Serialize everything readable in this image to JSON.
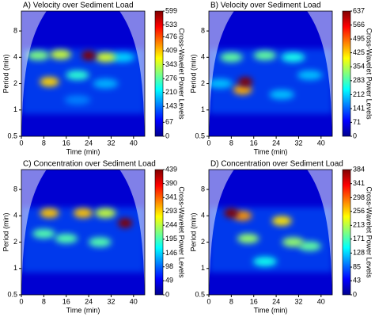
{
  "chart_data": [
    {
      "type": "heatmap",
      "title": "A) Velocity over Sediment Load",
      "xlabel": "Time (min)",
      "ylabel": "Period (min)",
      "colorbar_label": "Cross-Wavelet Power Levels",
      "colormap": "jet",
      "xlim": [
        0,
        44
      ],
      "xticks": [
        0,
        8,
        16,
        24,
        32,
        40
      ],
      "ylim": [
        0.5,
        13.5
      ],
      "yticks": [
        0.5,
        1,
        2,
        4,
        8
      ],
      "yscale": "log",
      "clim": [
        0,
        599
      ],
      "cticks": [
        0,
        67,
        143,
        210,
        276,
        343,
        409,
        476,
        533,
        599
      ],
      "x": [
        20,
        30,
        36,
        20,
        6,
        14,
        30,
        10,
        24
      ],
      "y": [
        1.3,
        2,
        4,
        2.5,
        4.2,
        4.3,
        4,
        2.1,
        4.2
      ],
      "values": [
        150,
        180,
        200,
        250,
        300,
        343,
        350,
        400,
        599
      ]
    },
    {
      "type": "heatmap",
      "title": "B) Velocity over Sediment Load",
      "xlabel": "Time (min)",
      "ylabel": "Period (min)",
      "colorbar_label": "Cross-Wavelet Power Levels",
      "colormap": "jet",
      "xlim": [
        0,
        44
      ],
      "xticks": [
        0,
        8,
        16,
        24,
        32,
        40
      ],
      "ylim": [
        0.5,
        13.5
      ],
      "yticks": [
        0.5,
        1,
        2,
        4,
        8
      ],
      "yscale": "log",
      "clim": [
        0,
        637
      ],
      "cticks": [
        0,
        71,
        141,
        212,
        283,
        354,
        425,
        495,
        566,
        637
      ],
      "x": [
        26,
        36,
        4,
        30,
        8,
        20,
        12,
        13
      ],
      "y": [
        1.5,
        2.5,
        2,
        4,
        4,
        4.2,
        1.7,
        2.1
      ],
      "values": [
        200,
        200,
        200,
        250,
        300,
        300,
        450,
        637
      ]
    },
    {
      "type": "heatmap",
      "title": "C) Concentration over Sediment Load",
      "xlabel": "Time (min)",
      "ylabel": "Period (min)",
      "colorbar_label": "Cross-Wavelet Power Levels",
      "colormap": "jet",
      "xlim": [
        0,
        44
      ],
      "xticks": [
        0,
        8,
        16,
        24,
        32,
        40
      ],
      "ylim": [
        0.5,
        13.5
      ],
      "yticks": [
        0.5,
        1,
        2,
        4,
        8
      ],
      "yscale": "log",
      "clim": [
        0,
        439
      ],
      "cticks": [
        0,
        49,
        98,
        146,
        195,
        244,
        293,
        341,
        390,
        439
      ],
      "x": [
        8,
        16,
        28,
        30,
        10,
        22,
        37
      ],
      "y": [
        2.5,
        2.2,
        2,
        4.3,
        4.3,
        4.3,
        3.3
      ],
      "values": [
        200,
        200,
        200,
        250,
        300,
        300,
        439
      ]
    },
    {
      "type": "heatmap",
      "title": "D) Concentration over Sediment Load",
      "xlabel": "Time (min)",
      "ylabel": "Period (min)",
      "colorbar_label": "Cross-Wavelet Power Levels",
      "colormap": "jet",
      "xlim": [
        0,
        44
      ],
      "xticks": [
        0,
        8,
        16,
        24,
        32,
        40
      ],
      "ylim": [
        0.5,
        13.5
      ],
      "yticks": [
        0.5,
        1,
        2,
        4,
        8
      ],
      "yscale": "log",
      "clim": [
        0,
        384
      ],
      "cticks": [
        0,
        43,
        85,
        128,
        171,
        213,
        256,
        298,
        341,
        384
      ],
      "x": [
        20,
        36,
        30,
        14,
        26,
        12,
        8
      ],
      "y": [
        1.2,
        1.8,
        2,
        2.2,
        3.5,
        4,
        4.3
      ],
      "values": [
        150,
        180,
        200,
        200,
        250,
        280,
        384
      ]
    }
  ]
}
